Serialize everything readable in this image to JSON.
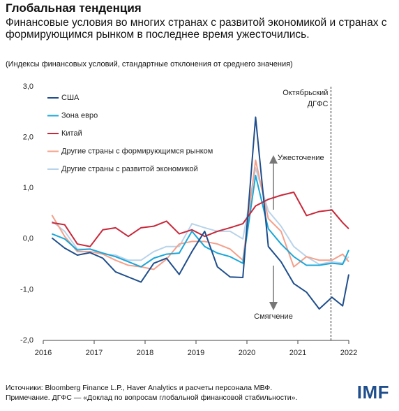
{
  "chart_data": {
    "type": "line",
    "title": "Глобальная тенденция",
    "subtitle": "Финансовые условия во многих странах с развитой экономикой и странах с формирующимся рынком в последнее время ужесточились.",
    "units_note": "(Индексы финансовых условий, стандартные отклонения от среднего значения)",
    "sources": "Источники: Bloomberg Finance L.P., Haver Analytics и расчеты персонала МВФ.",
    "note": "Примечание. ДГФС — «Доклад по вопросам глобальной финансовой стабильности».",
    "logo": "IMF",
    "x": [
      2016.17,
      2016.42,
      2016.67,
      2016.92,
      2017.17,
      2017.42,
      2017.67,
      2017.92,
      2018.17,
      2018.42,
      2018.67,
      2018.92,
      2019.17,
      2019.42,
      2019.67,
      2019.92,
      2020.17,
      2020.42,
      2020.67,
      2020.92,
      2021.17,
      2021.42,
      2021.67,
      2021.88,
      2022.0
    ],
    "series": [
      {
        "name": "США",
        "color": "#1f4e8c",
        "values": [
          0.02,
          -0.18,
          -0.32,
          -0.27,
          -0.38,
          -0.65,
          -0.75,
          -0.85,
          -0.48,
          -0.38,
          -0.7,
          -0.25,
          0.15,
          -0.55,
          -0.75,
          -0.76,
          2.4,
          -0.15,
          -0.45,
          -0.88,
          -1.05,
          -1.38,
          -1.15,
          -1.32,
          -0.7
        ]
      },
      {
        "name": "Зона евро",
        "color": "#1aa7d8",
        "values": [
          0.1,
          0.0,
          -0.22,
          -0.2,
          -0.28,
          -0.35,
          -0.45,
          -0.55,
          -0.38,
          -0.3,
          -0.28,
          0.15,
          -0.15,
          -0.28,
          -0.35,
          -0.48,
          1.25,
          0.2,
          -0.1,
          -0.35,
          -0.52,
          -0.52,
          -0.48,
          -0.5,
          -0.22
        ]
      },
      {
        "name": "Китай",
        "color": "#c8283a",
        "values": [
          0.32,
          0.28,
          -0.1,
          -0.15,
          0.18,
          0.22,
          0.05,
          0.22,
          0.25,
          0.35,
          0.1,
          0.18,
          0.05,
          0.15,
          0.22,
          0.3,
          0.65,
          0.78,
          0.86,
          0.92,
          0.46,
          0.54,
          0.57,
          0.32,
          0.2
        ]
      },
      {
        "name": "Другие страны с формирующимся рынком",
        "color": "#f4a08a",
        "values": [
          0.47,
          0.05,
          -0.25,
          -0.25,
          -0.3,
          -0.42,
          -0.52,
          -0.55,
          -0.6,
          -0.4,
          -0.1,
          -0.05,
          -0.05,
          -0.1,
          -0.2,
          -0.42,
          1.55,
          0.4,
          0.15,
          -0.55,
          -0.35,
          -0.42,
          -0.42,
          -0.3,
          -0.45
        ]
      },
      {
        "name": "Другие страны с развитой экономикой",
        "color": "#b8d3ea",
        "values": [
          0.35,
          0.15,
          -0.2,
          -0.2,
          -0.3,
          -0.32,
          -0.42,
          -0.42,
          -0.25,
          -0.15,
          -0.15,
          0.3,
          0.22,
          0.15,
          0.15,
          0.0,
          1.4,
          0.55,
          0.25,
          -0.15,
          -0.35,
          -0.5,
          -0.45,
          -0.48,
          -0.35
        ]
      }
    ],
    "xlim": [
      2016,
      2022
    ],
    "xticks": [
      2016,
      2017,
      2018,
      2019,
      2020,
      2021,
      2022
    ],
    "ylim": [
      -2,
      3
    ],
    "yticks": [
      {
        "value": -2,
        "label": "-2,0"
      },
      {
        "value": -1,
        "label": "-1,0"
      },
      {
        "value": 0,
        "label": "0,0"
      },
      {
        "value": 1,
        "label": "1,0"
      },
      {
        "value": 2,
        "label": "2,0"
      },
      {
        "value": 3,
        "label": "3,0"
      }
    ],
    "legend": "upper left",
    "annotations": [
      {
        "lines": [
          "Октябрьский",
          "ДГФС"
        ],
        "x": 2021.65
      },
      {
        "text": "Ужесточение"
      },
      {
        "text": "Смягчение"
      }
    ]
  }
}
